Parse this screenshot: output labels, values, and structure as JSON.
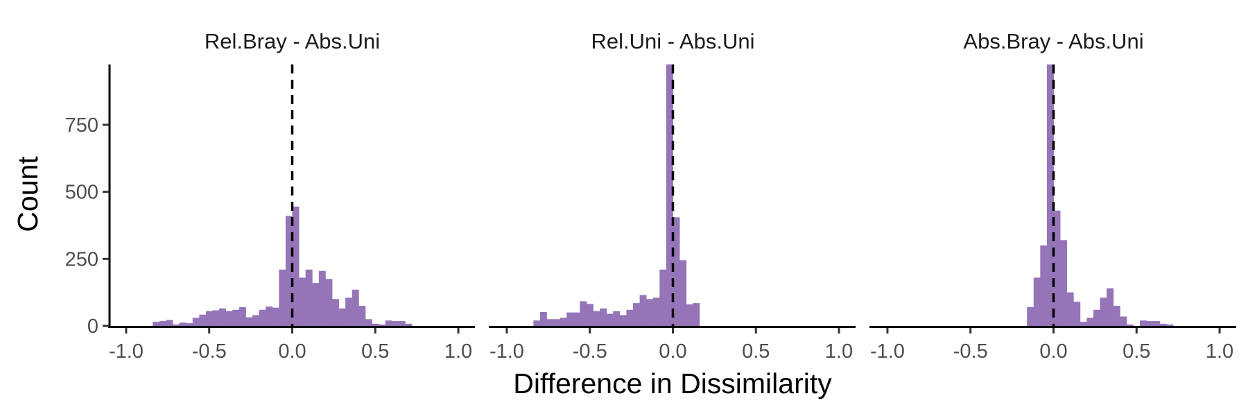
{
  "chart_data": {
    "type": "bar",
    "xlabel": "Difference in Dissimilarity",
    "ylabel": "Count",
    "xlim": [
      -1.1,
      1.1
    ],
    "ylim": [
      0,
      975
    ],
    "x_ticks": [
      -1.0,
      -0.5,
      0.0,
      0.5,
      1.0
    ],
    "x_tick_labels": [
      "-1.0",
      "-0.5",
      "0.0",
      "0.5",
      "1.0"
    ],
    "y_ticks": [
      0,
      250,
      500,
      750
    ],
    "y_tick_labels": [
      "0",
      "250",
      "500",
      "750"
    ],
    "bin_width": 0.04,
    "reference_line": {
      "x": 0.0,
      "style": "dashed"
    },
    "grid": false,
    "color": "#9575b8",
    "line_color": "#000000",
    "panels": [
      {
        "title": "Rel.Bray - Abs.Uni",
        "bin_centers": [
          -0.82,
          -0.78,
          -0.74,
          -0.7,
          -0.66,
          -0.62,
          -0.58,
          -0.54,
          -0.5,
          -0.46,
          -0.42,
          -0.38,
          -0.34,
          -0.3,
          -0.26,
          -0.22,
          -0.18,
          -0.14,
          -0.1,
          -0.06,
          -0.02,
          0.02,
          0.06,
          0.1,
          0.14,
          0.18,
          0.22,
          0.26,
          0.3,
          0.34,
          0.38,
          0.42,
          0.46,
          0.5,
          0.54,
          0.58,
          0.62,
          0.66,
          0.7
        ],
        "counts": [
          15,
          18,
          22,
          5,
          12,
          10,
          30,
          42,
          55,
          58,
          65,
          55,
          60,
          70,
          32,
          40,
          60,
          72,
          68,
          210,
          410,
          445,
          180,
          210,
          160,
          205,
          175,
          100,
          65,
          105,
          135,
          75,
          25,
          8,
          5,
          20,
          18,
          18,
          8
        ]
      },
      {
        "title": "Rel.Uni - Abs.Uni",
        "bin_centers": [
          -0.82,
          -0.78,
          -0.74,
          -0.7,
          -0.66,
          -0.62,
          -0.58,
          -0.54,
          -0.5,
          -0.46,
          -0.42,
          -0.38,
          -0.34,
          -0.3,
          -0.26,
          -0.22,
          -0.18,
          -0.14,
          -0.1,
          -0.06,
          -0.02,
          0.02,
          0.06,
          0.1,
          0.14,
          0.18,
          0.22
        ],
        "counts": [
          20,
          52,
          25,
          25,
          30,
          50,
          50,
          92,
          82,
          55,
          65,
          45,
          55,
          40,
          60,
          85,
          115,
          100,
          105,
          210,
          975,
          405,
          245,
          80,
          85,
          0,
          0
        ]
      },
      {
        "title": "Abs.Bray - Abs.Uni",
        "bin_centers": [
          -0.14,
          -0.1,
          -0.06,
          -0.02,
          0.02,
          0.06,
          0.1,
          0.14,
          0.18,
          0.22,
          0.26,
          0.3,
          0.34,
          0.38,
          0.42,
          0.46,
          0.5,
          0.54,
          0.58,
          0.62,
          0.66,
          0.7
        ],
        "counts": [
          70,
          180,
          300,
          975,
          430,
          320,
          125,
          90,
          15,
          30,
          60,
          105,
          140,
          75,
          35,
          5,
          0,
          20,
          18,
          18,
          8,
          5
        ]
      }
    ]
  }
}
